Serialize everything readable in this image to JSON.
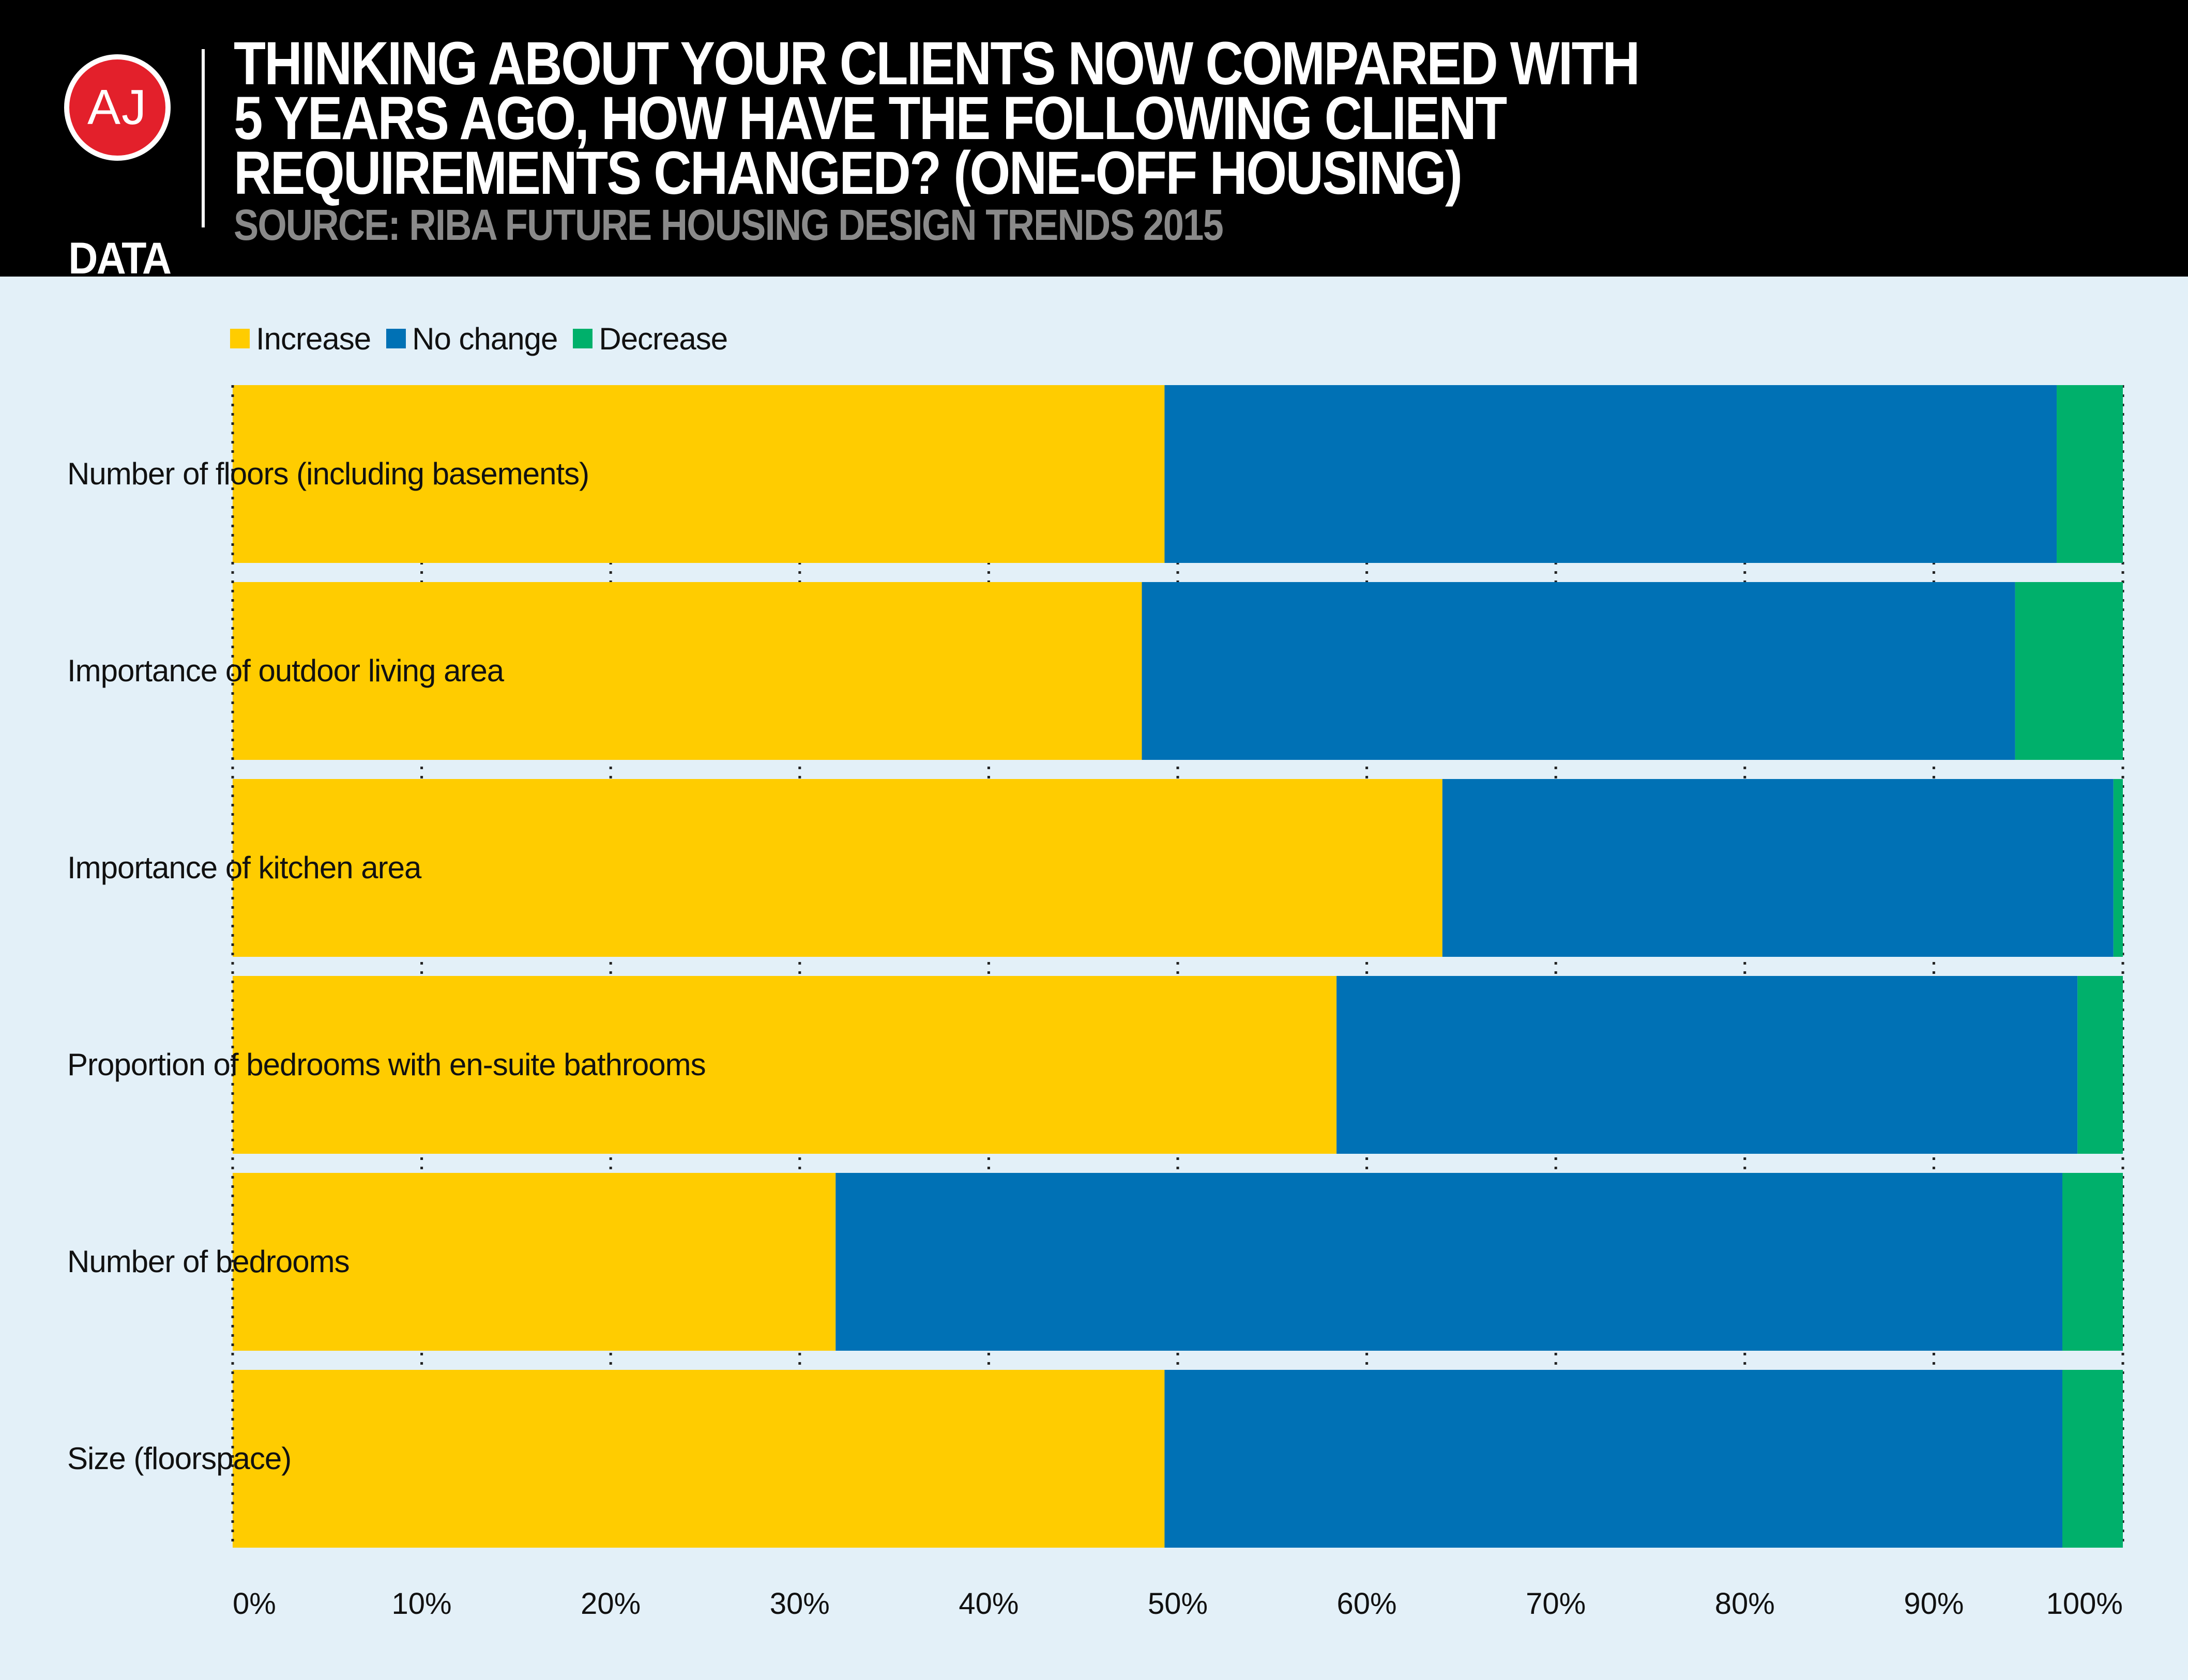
{
  "header": {
    "logo_top": "AJ",
    "logo_bottom": "DATA",
    "title": "Thinking about your clients now compared with\n5 years ago, how have the following client\nrequirements changed? (one-off housing)",
    "source": "Source: RIBA Future Housing Design Trends 2015"
  },
  "colors": {
    "increase": "#ffcc00",
    "no_change": "#0071b5",
    "decrease": "#00b06b",
    "background": "#e3f0f8",
    "header": "#000000"
  },
  "chart_data": {
    "type": "bar",
    "orientation": "horizontal",
    "stacked": "100%",
    "categories": [
      "Number of floors (including basements)",
      "Importance of outdoor living area",
      "Importance of kitchen area",
      "Proportion of bedrooms with en-suite bathrooms",
      "Number of bedrooms",
      "Size (floorspace)"
    ],
    "series": [
      {
        "name": "Increase",
        "color": "#ffcc00",
        "values": [
          49.3,
          48.1,
          64.0,
          58.4,
          31.9,
          49.3
        ]
      },
      {
        "name": "No change",
        "color": "#0071b5",
        "values": [
          47.2,
          46.2,
          35.5,
          39.2,
          64.9,
          47.5
        ]
      },
      {
        "name": "Decrease",
        "color": "#00b06b",
        "values": [
          3.5,
          5.7,
          0.5,
          2.4,
          3.2,
          3.2
        ]
      }
    ],
    "xlim": [
      0,
      100
    ],
    "xticks": [
      "0%",
      "10%",
      "20%",
      "30%",
      "40%",
      "50%",
      "60%",
      "70%",
      "80%",
      "90%",
      "100%"
    ],
    "grid": "dotted vertical",
    "legend_position": "top-left"
  }
}
